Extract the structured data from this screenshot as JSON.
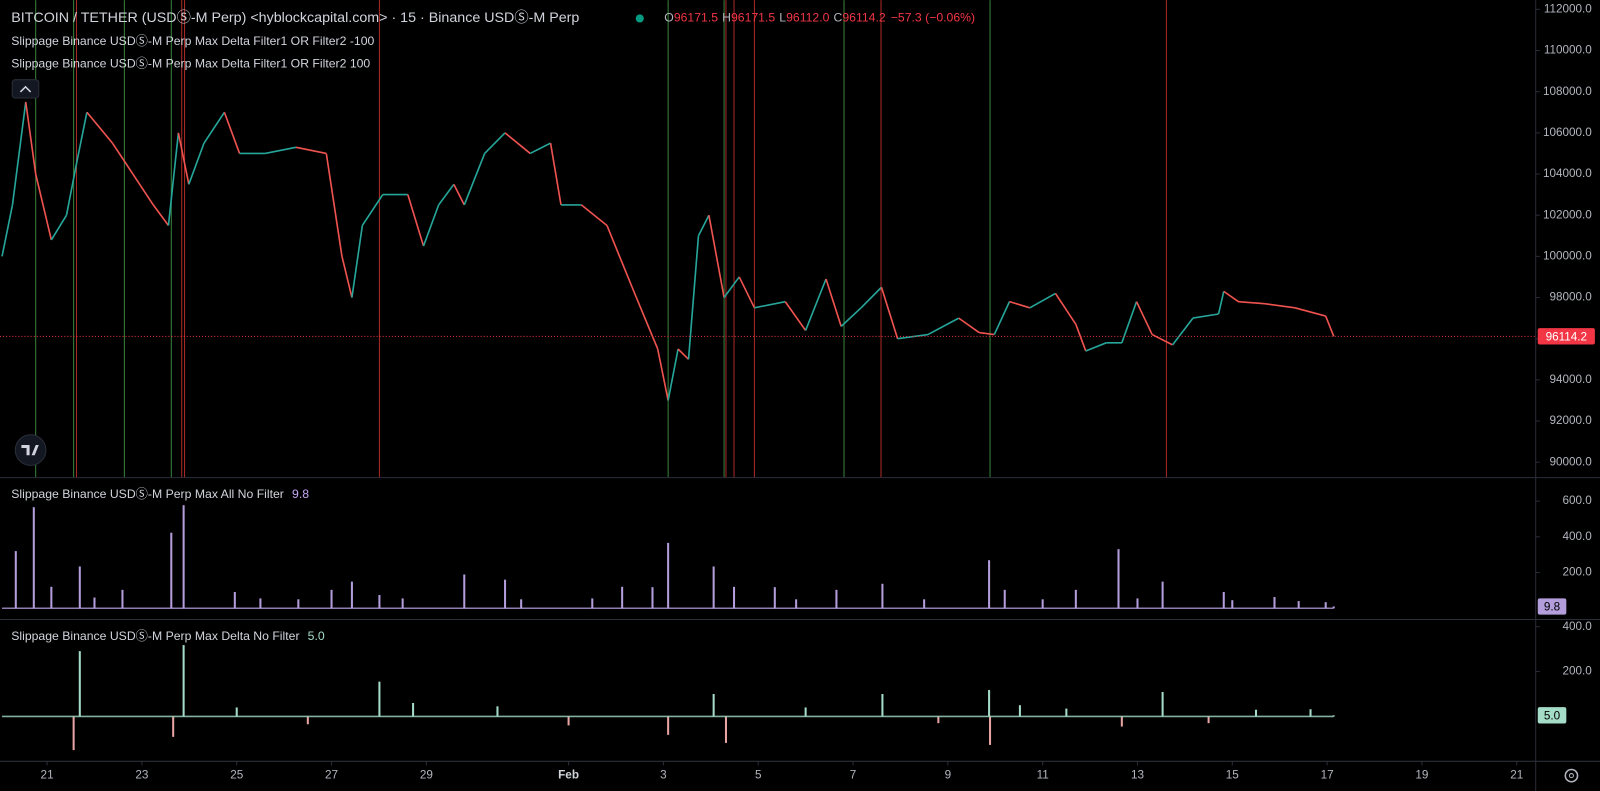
{
  "header": {
    "title": "BITCOIN / TETHER (USDⓈ-M Perp) <hyblockcapital.com> · 15 · Binance USDⓈ-M Perp",
    "ohlc": [
      {
        "key": "O",
        "value": "96171.5"
      },
      {
        "key": "H",
        "value": "96171.5"
      },
      {
        "key": "L",
        "value": "96112.0"
      },
      {
        "key": "C",
        "value": "96114.2"
      }
    ],
    "change": "−57.3 (−0.06%)"
  },
  "chart_data": [
    {
      "type": "line",
      "up_color": "#26a69a",
      "down_color": "#ef5350",
      "x": [
        20.05,
        20.27,
        20.55,
        20.76,
        21.09,
        21.41,
        21.62,
        21.84,
        22.38,
        22.81,
        23.24,
        23.56,
        23.77,
        23.99,
        24.31,
        24.74,
        25.06,
        25.6,
        26.25,
        26.89,
        27.22,
        27.43,
        27.65,
        28.08,
        28.61,
        28.94,
        29.26,
        29.58,
        29.8,
        30.23,
        30.66,
        31.19,
        31.62,
        31.84,
        32.27,
        32.81,
        33.34,
        33.88,
        34.1,
        34.31,
        34.53,
        34.74,
        34.96,
        35.28,
        35.6,
        35.92,
        36.57,
        37.0,
        37.43,
        37.75,
        38.17,
        38.6,
        38.94,
        39.58,
        40.23,
        40.66,
        40.98,
        41.3,
        41.73,
        42.27,
        42.7,
        42.91,
        43.34,
        43.67,
        43.98,
        44.31,
        44.74,
        45.17,
        45.71,
        45.82,
        46.13,
        46.68,
        47.32,
        47.97,
        48.14
      ],
      "values": [
        100000,
        102500,
        107500,
        104000,
        100800,
        102000,
        104500,
        107000,
        105500,
        104000,
        102500,
        101500,
        106000,
        103500,
        105500,
        107000,
        105000,
        105000,
        105300,
        105000,
        100000,
        98000,
        101500,
        103000,
        103000,
        100500,
        102500,
        103500,
        102500,
        105000,
        106000,
        105000,
        105500,
        102500,
        102500,
        101500,
        98500,
        95500,
        93000,
        95500,
        95000,
        101000,
        102000,
        98000,
        99000,
        97500,
        97800,
        96400,
        98900,
        96600,
        97500,
        98500,
        96000,
        96200,
        97000,
        96300,
        96200,
        97800,
        97500,
        98200,
        96700,
        95400,
        95800,
        95800,
        97800,
        96200,
        95700,
        97000,
        97200,
        98300,
        97800,
        97700,
        97500,
        97100,
        96114.2
      ],
      "last_price": {
        "value": 96114.2,
        "label": "96114.2"
      },
      "last_price_color": "#f23645",
      "signals": [
        {
          "name": "Slippage Binance USDⓈ-M Perp Max Delta Filter1 OR Filter2 -100",
          "color": "#4caf50",
          "x": [
            20.76,
            21.56,
            22.63,
            23.62,
            34.1,
            35.28,
            37.81,
            40.89
          ]
        },
        {
          "name": "Slippage Binance USDⓈ-M Perp Max Delta Filter1 OR Filter2 100",
          "color": "#e53935",
          "x": [
            21.62,
            23.84,
            23.9,
            28.01,
            35.32,
            35.49,
            35.92,
            38.59,
            44.61
          ]
        }
      ],
      "xlim": [
        20.05,
        52.4
      ],
      "xticks": [
        {
          "value": 21,
          "label": "21"
        },
        {
          "value": 23,
          "label": "23"
        },
        {
          "value": 25,
          "label": "25"
        },
        {
          "value": 27,
          "label": "27"
        },
        {
          "value": 29,
          "label": "29"
        },
        {
          "value": 32,
          "label": "Feb"
        },
        {
          "value": 34,
          "label": "3"
        },
        {
          "value": 36,
          "label": "5"
        },
        {
          "value": 38,
          "label": "7"
        },
        {
          "value": 40,
          "label": "9"
        },
        {
          "value": 42,
          "label": "11"
        },
        {
          "value": 44,
          "label": "13"
        },
        {
          "value": 46,
          "label": "15"
        },
        {
          "value": 48,
          "label": "17"
        },
        {
          "value": 50,
          "label": "19"
        },
        {
          "value": 52,
          "label": "21"
        }
      ],
      "ylim": [
        89250,
        112450
      ],
      "yticks": [
        {
          "value": 90000,
          "label": "90000.0"
        },
        {
          "value": 92000,
          "label": "92000.0"
        },
        {
          "value": 94000,
          "label": "94000.0"
        },
        {
          "value": 96000,
          "label": "96000.0"
        },
        {
          "value": 98000,
          "label": "98000.0"
        },
        {
          "value": 100000,
          "label": "100000.0"
        },
        {
          "value": 102000,
          "label": "102000.0"
        },
        {
          "value": 104000,
          "label": "104000.0"
        },
        {
          "value": 106000,
          "label": "106000.0"
        },
        {
          "value": 108000,
          "label": "108000.0"
        },
        {
          "value": 110000,
          "label": "110000.0"
        },
        {
          "value": 112000,
          "label": "112000.0"
        }
      ]
    },
    {
      "type": "bar",
      "title": "Slippage Binance USDⓈ-M Perp Max All No Filter",
      "color": "#b39ddb",
      "x": [
        20.34,
        20.72,
        21.09,
        21.69,
        22.0,
        22.59,
        23.62,
        23.88,
        24.96,
        25.5,
        26.3,
        27.0,
        27.43,
        28.01,
        28.5,
        29.8,
        30.66,
        31.0,
        32.5,
        33.13,
        33.77,
        34.1,
        35.06,
        35.49,
        36.35,
        36.8,
        37.65,
        38.62,
        39.5,
        40.87,
        41.2,
        42.0,
        42.7,
        43.6,
        44.0,
        44.53,
        45.82,
        46.0,
        46.89,
        47.4,
        47.97,
        48.14
      ],
      "values": [
        320,
        566,
        120,
        234,
        60,
        103,
        423,
        577,
        91,
        55,
        50,
        103,
        149,
        74,
        55,
        189,
        160,
        50,
        55,
        120,
        118,
        366,
        234,
        120,
        118,
        50,
        103,
        137,
        50,
        269,
        103,
        50,
        103,
        331,
        55,
        149,
        91,
        45,
        63,
        40,
        34,
        9.8
      ],
      "last_value": {
        "value": 9.8,
        "label": "9.8"
      },
      "ylim": [
        -63,
        720
      ],
      "yticks": [
        {
          "value": 200,
          "label": "200.0"
        },
        {
          "value": 400,
          "label": "400.0"
        },
        {
          "value": 600,
          "label": "600.0"
        }
      ]
    },
    {
      "type": "bar",
      "title": "Slippage Binance USDⓈ-M Perp Max Delta No Filter",
      "color": "#a5dcc8",
      "negative_color": "#e8a3a3",
      "x": [
        21.56,
        21.69,
        23.66,
        23.88,
        25.0,
        26.5,
        28.01,
        28.72,
        30.5,
        32.0,
        34.1,
        35.06,
        35.32,
        37.0,
        38.62,
        39.8,
        40.87,
        40.89,
        41.52,
        42.5,
        43.67,
        44.53,
        45.5,
        46.5,
        47.65,
        48.14
      ],
      "values": [
        -150,
        291,
        -91,
        318,
        40,
        -35,
        155,
        60,
        45,
        -40,
        -82,
        100,
        -118,
        40,
        100,
        -30,
        118,
        -127,
        50,
        35,
        -45,
        109,
        -30,
        30,
        32,
        5
      ],
      "last_value": {
        "value": 5,
        "label": "5.0"
      },
      "ylim": [
        -200,
        423
      ],
      "yticks": [
        {
          "value": 200,
          "label": "200.0"
        },
        {
          "value": 400,
          "label": "400.0"
        }
      ]
    }
  ]
}
